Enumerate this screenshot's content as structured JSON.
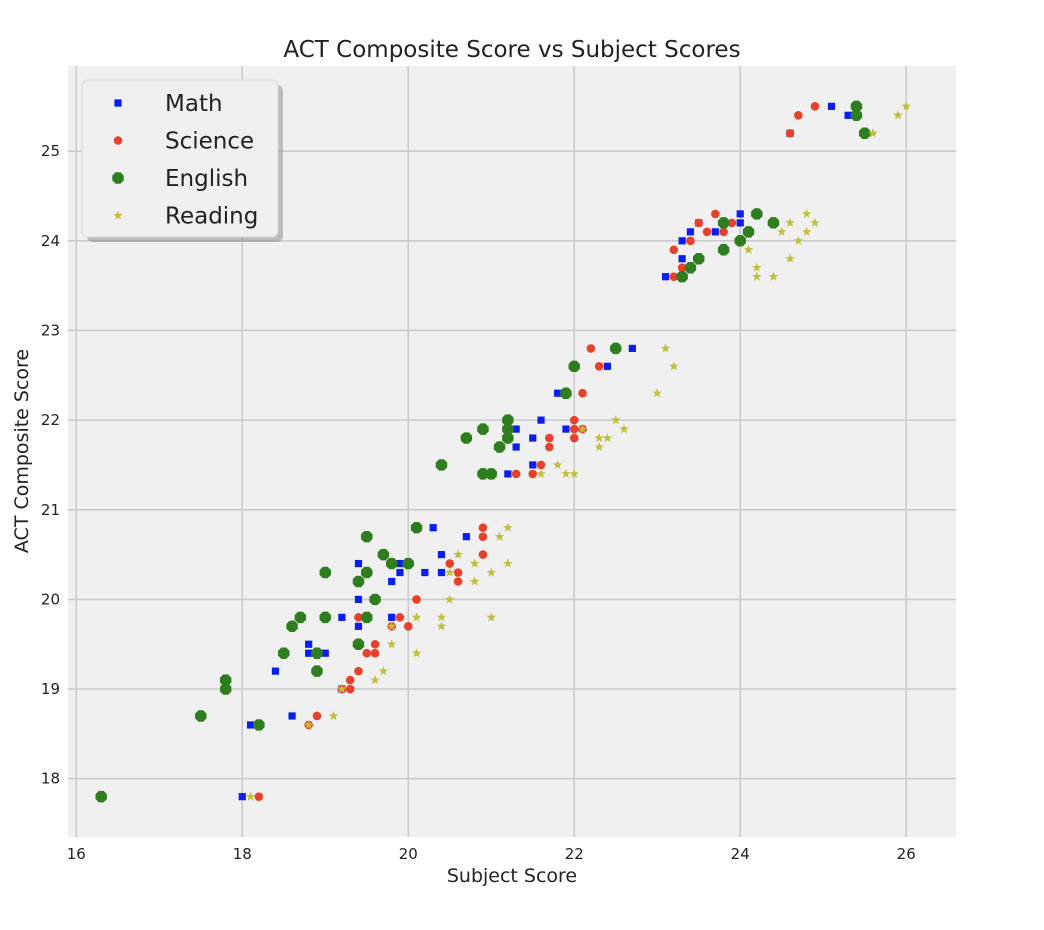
{
  "chart_data": {
    "type": "scatter",
    "title": "ACT Composite Score vs Subject Scores",
    "xlabel": "Subject Score",
    "ylabel": "ACT Composite Score",
    "xlim": [
      15.9,
      26.6
    ],
    "ylim": [
      17.35,
      25.95
    ],
    "xticks": [
      16,
      18,
      20,
      22,
      24,
      26
    ],
    "yticks": [
      18,
      19,
      20,
      21,
      22,
      23,
      24,
      25
    ],
    "grid": true,
    "background": "#f0f0f0",
    "legend_position": "top-left",
    "series": [
      {
        "name": "Math",
        "marker": "square",
        "color": "#0a1ef0",
        "points": [
          [
            18.0,
            17.8
          ],
          [
            18.1,
            18.6
          ],
          [
            18.6,
            18.7
          ],
          [
            18.4,
            19.2
          ],
          [
            18.8,
            19.4
          ],
          [
            18.8,
            19.5
          ],
          [
            19.0,
            19.4
          ],
          [
            19.2,
            19.0
          ],
          [
            19.2,
            19.8
          ],
          [
            19.4,
            19.7
          ],
          [
            19.4,
            20.0
          ],
          [
            19.4,
            20.4
          ],
          [
            19.8,
            19.8
          ],
          [
            19.8,
            20.2
          ],
          [
            19.9,
            20.3
          ],
          [
            19.9,
            20.4
          ],
          [
            20.2,
            20.3
          ],
          [
            20.3,
            20.8
          ],
          [
            20.4,
            20.3
          ],
          [
            20.4,
            20.5
          ],
          [
            20.7,
            20.7
          ],
          [
            21.2,
            21.4
          ],
          [
            21.3,
            21.7
          ],
          [
            21.3,
            21.9
          ],
          [
            21.5,
            21.5
          ],
          [
            21.5,
            21.8
          ],
          [
            21.6,
            22.0
          ],
          [
            21.8,
            22.3
          ],
          [
            21.9,
            21.9
          ],
          [
            22.4,
            22.6
          ],
          [
            22.7,
            22.8
          ],
          [
            23.1,
            23.6
          ],
          [
            23.3,
            23.8
          ],
          [
            23.3,
            24.0
          ],
          [
            23.4,
            24.1
          ],
          [
            23.5,
            24.2
          ],
          [
            23.7,
            24.1
          ],
          [
            23.8,
            24.2
          ],
          [
            24.0,
            24.2
          ],
          [
            24.0,
            24.3
          ],
          [
            24.6,
            25.2
          ],
          [
            25.1,
            25.5
          ],
          [
            25.3,
            25.4
          ]
        ]
      },
      {
        "name": "Science",
        "marker": "circle",
        "color": "#e8412b",
        "points": [
          [
            18.2,
            17.8
          ],
          [
            18.8,
            18.6
          ],
          [
            18.9,
            18.7
          ],
          [
            19.2,
            19.0
          ],
          [
            19.3,
            19.0
          ],
          [
            19.3,
            19.1
          ],
          [
            19.4,
            19.2
          ],
          [
            19.4,
            19.8
          ],
          [
            19.5,
            19.4
          ],
          [
            19.6,
            19.4
          ],
          [
            19.6,
            19.5
          ],
          [
            19.8,
            19.7
          ],
          [
            19.9,
            19.8
          ],
          [
            20.0,
            19.7
          ],
          [
            20.1,
            20.0
          ],
          [
            20.5,
            20.4
          ],
          [
            20.6,
            20.2
          ],
          [
            20.6,
            20.3
          ],
          [
            20.9,
            20.5
          ],
          [
            20.9,
            20.7
          ],
          [
            20.9,
            20.8
          ],
          [
            21.3,
            21.4
          ],
          [
            21.5,
            21.4
          ],
          [
            21.6,
            21.5
          ],
          [
            21.7,
            21.7
          ],
          [
            21.7,
            21.8
          ],
          [
            22.0,
            21.8
          ],
          [
            22.0,
            21.9
          ],
          [
            22.0,
            22.0
          ],
          [
            22.1,
            21.9
          ],
          [
            22.1,
            22.3
          ],
          [
            22.2,
            22.8
          ],
          [
            22.3,
            22.6
          ],
          [
            23.2,
            23.6
          ],
          [
            23.2,
            23.9
          ],
          [
            23.3,
            23.7
          ],
          [
            23.4,
            24.0
          ],
          [
            23.5,
            24.2
          ],
          [
            23.6,
            24.1
          ],
          [
            23.7,
            24.3
          ],
          [
            23.8,
            24.1
          ],
          [
            23.9,
            24.2
          ],
          [
            24.6,
            25.2
          ],
          [
            24.7,
            25.4
          ],
          [
            24.9,
            25.5
          ]
        ]
      },
      {
        "name": "English",
        "marker": "octagon",
        "color": "#2e7d1f",
        "points": [
          [
            16.3,
            17.8
          ],
          [
            17.5,
            18.7
          ],
          [
            17.8,
            19.0
          ],
          [
            17.8,
            19.1
          ],
          [
            18.2,
            18.6
          ],
          [
            18.5,
            19.4
          ],
          [
            18.6,
            19.7
          ],
          [
            18.7,
            19.8
          ],
          [
            18.9,
            19.2
          ],
          [
            18.9,
            19.4
          ],
          [
            19.0,
            19.8
          ],
          [
            19.0,
            20.3
          ],
          [
            19.4,
            19.5
          ],
          [
            19.4,
            20.2
          ],
          [
            19.5,
            19.8
          ],
          [
            19.5,
            20.3
          ],
          [
            19.5,
            20.7
          ],
          [
            19.6,
            20.0
          ],
          [
            19.7,
            20.5
          ],
          [
            19.8,
            20.4
          ],
          [
            20.0,
            20.4
          ],
          [
            20.1,
            20.8
          ],
          [
            20.4,
            21.5
          ],
          [
            20.7,
            21.8
          ],
          [
            20.9,
            21.4
          ],
          [
            20.9,
            21.9
          ],
          [
            21.0,
            21.4
          ],
          [
            21.1,
            21.7
          ],
          [
            21.2,
            21.8
          ],
          [
            21.2,
            21.9
          ],
          [
            21.2,
            22.0
          ],
          [
            21.9,
            22.3
          ],
          [
            22.0,
            22.6
          ],
          [
            22.5,
            22.8
          ],
          [
            23.3,
            23.6
          ],
          [
            23.4,
            23.7
          ],
          [
            23.5,
            23.8
          ],
          [
            23.8,
            23.9
          ],
          [
            23.8,
            24.2
          ],
          [
            24.0,
            24.0
          ],
          [
            24.1,
            24.1
          ],
          [
            24.2,
            24.3
          ],
          [
            24.4,
            24.2
          ],
          [
            25.4,
            25.4
          ],
          [
            25.4,
            25.5
          ],
          [
            25.5,
            25.2
          ]
        ]
      },
      {
        "name": "Reading",
        "marker": "star",
        "color": "#bfbf3a",
        "points": [
          [
            18.1,
            17.8
          ],
          [
            18.8,
            18.6
          ],
          [
            19.1,
            18.7
          ],
          [
            19.2,
            19.0
          ],
          [
            19.6,
            19.1
          ],
          [
            19.7,
            19.2
          ],
          [
            19.8,
            19.5
          ],
          [
            19.8,
            19.7
          ],
          [
            20.1,
            19.4
          ],
          [
            20.1,
            19.8
          ],
          [
            20.4,
            19.7
          ],
          [
            20.4,
            19.8
          ],
          [
            20.5,
            20.0
          ],
          [
            20.5,
            20.3
          ],
          [
            20.6,
            20.5
          ],
          [
            20.8,
            20.2
          ],
          [
            20.8,
            20.4
          ],
          [
            21.0,
            19.8
          ],
          [
            21.0,
            20.3
          ],
          [
            21.1,
            20.7
          ],
          [
            21.2,
            20.4
          ],
          [
            21.2,
            20.8
          ],
          [
            21.6,
            21.4
          ],
          [
            21.8,
            21.5
          ],
          [
            21.9,
            21.4
          ],
          [
            22.0,
            21.4
          ],
          [
            22.1,
            21.9
          ],
          [
            22.3,
            21.7
          ],
          [
            22.3,
            21.8
          ],
          [
            22.4,
            21.8
          ],
          [
            22.5,
            22.0
          ],
          [
            22.6,
            21.9
          ],
          [
            23.0,
            22.3
          ],
          [
            23.1,
            22.8
          ],
          [
            23.2,
            22.6
          ],
          [
            24.1,
            23.9
          ],
          [
            24.2,
            23.6
          ],
          [
            24.2,
            23.7
          ],
          [
            24.4,
            23.6
          ],
          [
            24.5,
            24.1
          ],
          [
            24.6,
            23.8
          ],
          [
            24.6,
            24.2
          ],
          [
            24.7,
            24.0
          ],
          [
            24.8,
            24.1
          ],
          [
            24.8,
            24.3
          ],
          [
            24.9,
            24.2
          ],
          [
            25.6,
            25.2
          ],
          [
            25.9,
            25.4
          ],
          [
            26.0,
            25.5
          ]
        ]
      }
    ]
  }
}
